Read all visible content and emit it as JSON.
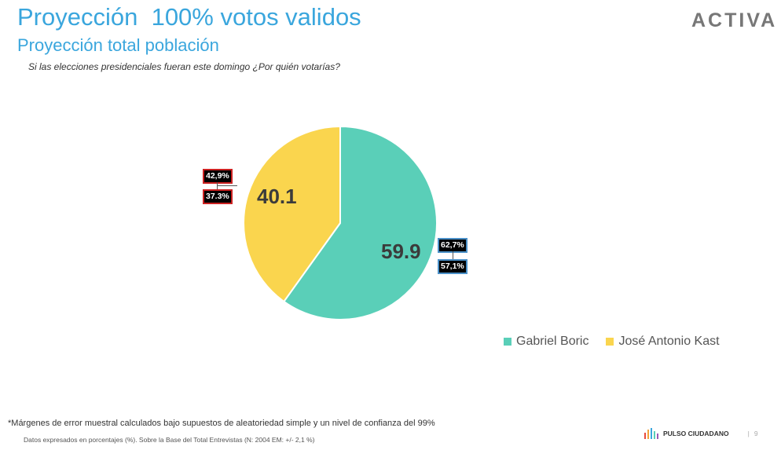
{
  "header": {
    "title": "Proyección  100% votos validos",
    "subtitle": "Proyección total población",
    "question": "Si las elecciones presidenciales fueran este domingo ¿Por quién votarías?",
    "brand": "ACTIVA"
  },
  "chart_data": {
    "type": "pie",
    "slices": [
      {
        "name": "Gabriel Boric",
        "value": 59.9,
        "label": "59.9",
        "color": "#5acfb8",
        "error_high": "62,7%",
        "error_low": "57,1%"
      },
      {
        "name": "José Antonio Kast",
        "value": 40.1,
        "label": "40.1",
        "color": "#fad54e",
        "error_high": "42,9%",
        "error_low": "37.3%"
      }
    ],
    "legend": [
      "Gabriel Boric",
      "José Antonio Kast"
    ],
    "legend_position": "bottom-right"
  },
  "footer": {
    "note1": "*Márgenes de error muestral calculados bajo supuestos de aleatoriedad simple y un nivel de confianza del 99%",
    "note2": "Datos expresados en porcentajes (%). Sobre la Base del Total Entrevistas (N: 2004  EM: +/- 2,1 %)",
    "pulso": "PULSO CIUDADANO",
    "page": "9"
  }
}
